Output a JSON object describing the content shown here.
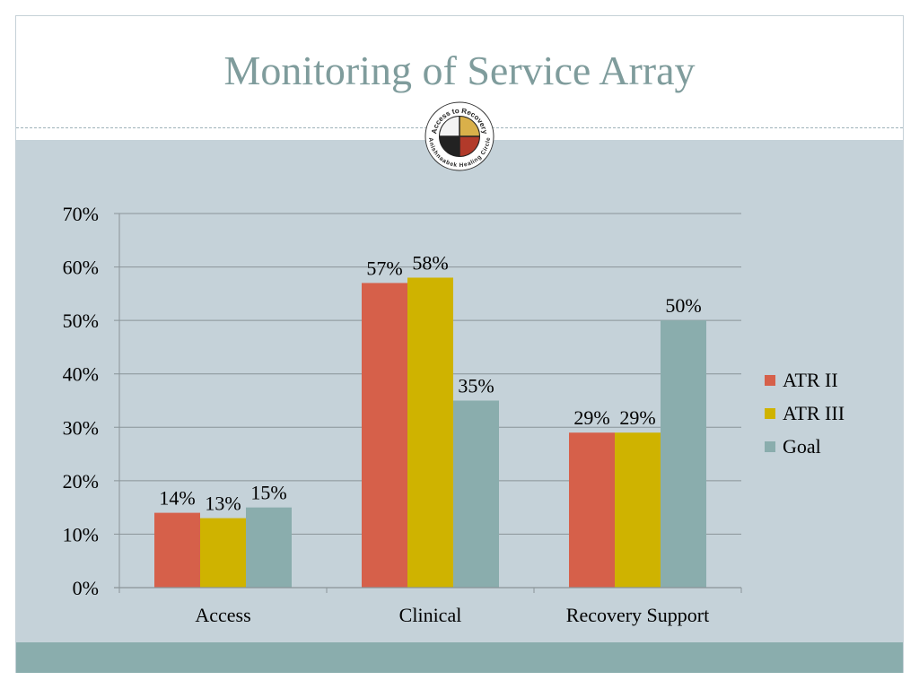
{
  "slide": {
    "title": "Monitoring of Service Array",
    "logo_text_top": "Access to Recovery",
    "logo_text_bottom": "Anishnaabek Healing Circle"
  },
  "colors": {
    "title": "#7f9c9c",
    "background": "#c5d2d9",
    "footer": "#8aadad",
    "grid": "#8a9499"
  },
  "chart_data": {
    "type": "bar",
    "title": "",
    "xlabel": "",
    "ylabel": "",
    "categories": [
      "Access",
      "Clinical",
      "Recovery Support"
    ],
    "series": [
      {
        "name": "ATR II",
        "color": "#d6604a",
        "values": [
          0.14,
          0.57,
          0.29
        ],
        "labels": [
          "14%",
          "57%",
          "29%"
        ]
      },
      {
        "name": "ATR III",
        "color": "#cfb300",
        "values": [
          0.13,
          0.58,
          0.29
        ],
        "labels": [
          "13%",
          "58%",
          "29%"
        ]
      },
      {
        "name": "Goal",
        "color": "#8aadad",
        "values": [
          0.15,
          0.35,
          0.5
        ],
        "labels": [
          "15%",
          "35%",
          "50%"
        ]
      }
    ],
    "ylim": [
      0,
      0.7
    ],
    "yticks": [
      "0%",
      "10%",
      "20%",
      "30%",
      "40%",
      "50%",
      "60%",
      "70%"
    ],
    "grid": true,
    "legend_position": "right"
  }
}
